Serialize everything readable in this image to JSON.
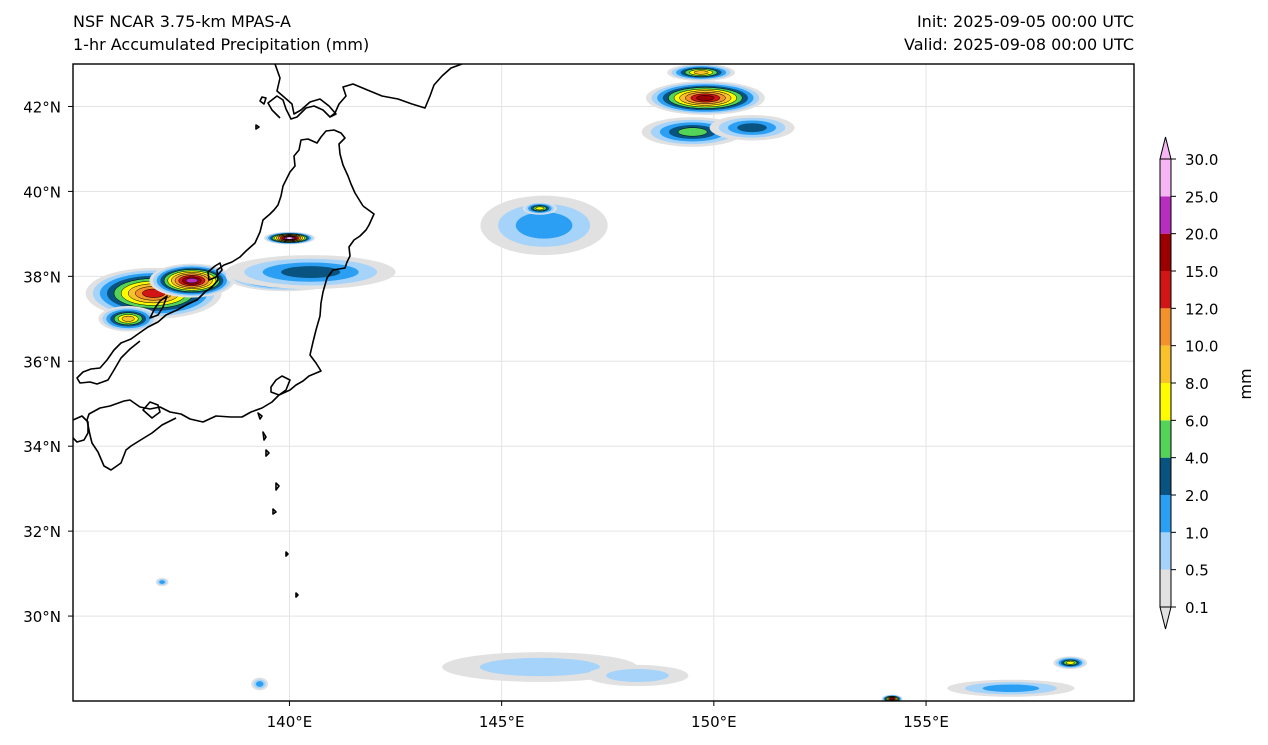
{
  "header": {
    "model_line": "NSF NCAR 3.75-km MPAS-A",
    "field_line": "1-hr Accumulated Precipitation (mm)",
    "init_line": "Init: 2025-09-05 00:00 UTC",
    "valid_line": "Valid: 2025-09-08 00:00 UTC"
  },
  "map": {
    "lon_range": [
      134.9,
      159.9
    ],
    "lat_range": [
      28.0,
      43.0
    ],
    "lon_ticks": [
      {
        "value": 140,
        "label": "140°E"
      },
      {
        "value": 145,
        "label": "145°E"
      },
      {
        "value": 150,
        "label": "150°E"
      },
      {
        "value": 155,
        "label": "155°E"
      }
    ],
    "lat_ticks": [
      {
        "value": 30,
        "label": "30°N"
      },
      {
        "value": 32,
        "label": "32°N"
      },
      {
        "value": 34,
        "label": "34°N"
      },
      {
        "value": 36,
        "label": "36°N"
      },
      {
        "value": 38,
        "label": "38°N"
      },
      {
        "value": 40,
        "label": "40°N"
      },
      {
        "value": 42,
        "label": "42°N"
      }
    ],
    "gridlines": true
  },
  "colorbar": {
    "unit": "mm",
    "levels": [
      "0.1",
      "0.5",
      "1.0",
      "2.0",
      "4.0",
      "6.0",
      "8.0",
      "10.0",
      "12.0",
      "15.0",
      "20.0",
      "25.0",
      "30.0"
    ],
    "colors": [
      "#e1e1e1",
      "#a6d3fa",
      "#2b9ff4",
      "#08537f",
      "#53d458",
      "#fffb00",
      "#f9c22a",
      "#f3922a",
      "#d11414",
      "#9b0000",
      "#b82dbf",
      "#f6b5f5"
    ],
    "extend": "both"
  },
  "chart_data": {
    "type": "heatmap",
    "title": "1-hr Accumulated Precipitation (mm)",
    "xlabel": "",
    "ylabel": "",
    "xlim": [
      134.9,
      159.9
    ],
    "ylim": [
      28.0,
      43.0
    ],
    "color_levels": [
      0.1,
      0.5,
      1.0,
      2.0,
      4.0,
      6.0,
      8.0,
      10.0,
      12.0,
      15.0,
      20.0,
      25.0,
      30.0
    ],
    "precip_areas": [
      {
        "lon": 136.8,
        "lat": 37.6,
        "rx": 1.6,
        "ry": 0.6,
        "level": 8
      },
      {
        "lon": 137.7,
        "lat": 37.9,
        "rx": 1.0,
        "ry": 0.4,
        "level": 10
      },
      {
        "lon": 139.9,
        "lat": 38.0,
        "rx": 1.4,
        "ry": 0.35,
        "level": 8
      },
      {
        "lon": 140.5,
        "lat": 38.1,
        "rx": 2.0,
        "ry": 0.4,
        "level": 3
      },
      {
        "lon": 136.2,
        "lat": 37.0,
        "rx": 0.7,
        "ry": 0.3,
        "level": 6
      },
      {
        "lon": 140.0,
        "lat": 38.9,
        "rx": 0.6,
        "ry": 0.15,
        "level": 11
      },
      {
        "lon": 146.0,
        "lat": 39.2,
        "rx": 1.5,
        "ry": 0.7,
        "level": 2
      },
      {
        "lon": 145.9,
        "lat": 39.6,
        "rx": 0.4,
        "ry": 0.15,
        "level": 5
      },
      {
        "lon": 149.8,
        "lat": 42.2,
        "rx": 1.4,
        "ry": 0.4,
        "level": 9
      },
      {
        "lon": 149.5,
        "lat": 41.4,
        "rx": 1.2,
        "ry": 0.35,
        "level": 4
      },
      {
        "lon": 150.9,
        "lat": 41.5,
        "rx": 1.0,
        "ry": 0.3,
        "level": 3
      },
      {
        "lon": 149.7,
        "lat": 42.8,
        "rx": 0.8,
        "ry": 0.2,
        "level": 6
      },
      {
        "lon": 145.9,
        "lat": 28.8,
        "rx": 2.3,
        "ry": 0.35,
        "level": 1
      },
      {
        "lon": 148.2,
        "lat": 28.6,
        "rx": 1.2,
        "ry": 0.25,
        "level": 1
      },
      {
        "lon": 154.2,
        "lat": 28.05,
        "rx": 0.25,
        "ry": 0.1,
        "level": 9
      },
      {
        "lon": 158.4,
        "lat": 28.9,
        "rx": 0.4,
        "ry": 0.15,
        "level": 5
      },
      {
        "lon": 157.0,
        "lat": 28.3,
        "rx": 1.5,
        "ry": 0.2,
        "level": 2
      },
      {
        "lon": 139.3,
        "lat": 28.4,
        "rx": 0.2,
        "ry": 0.15,
        "level": 2
      },
      {
        "lon": 137.0,
        "lat": 30.8,
        "rx": 0.15,
        "ry": 0.1,
        "level": 2
      }
    ]
  }
}
